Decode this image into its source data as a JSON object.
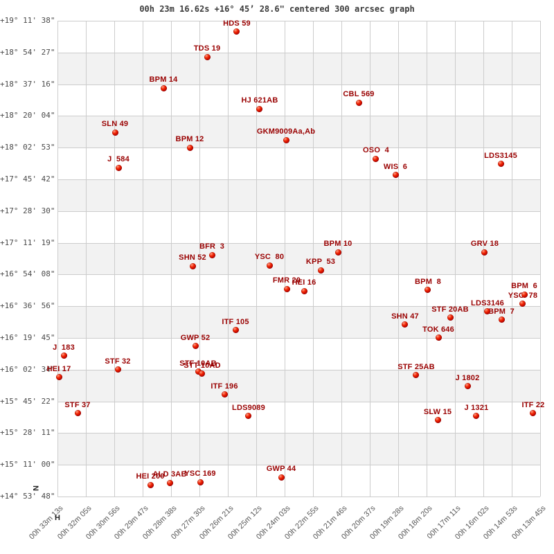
{
  "chart_data": {
    "type": "scatter",
    "title": "00h 23m 16.62s +16° 45’ 28.6\" centered 300 arcsec graph",
    "description": "Double-star identifiers plotted by Right Ascension (x, decreasing rightward) and Declination (y)",
    "grid": true,
    "legend": false,
    "x_axis": {
      "quantity": "right ascension",
      "unit_marker": "H",
      "direction": "decreasing-rightward",
      "range_seconds_of_ra": [
        1993,
        825
      ],
      "tick_labels": [
        "00h 33m 13s",
        "00h 32m 05s",
        "00h 30m 56s",
        "00h 29m 47s",
        "00h 28m 38s",
        "00h 27m 30s",
        "00h 26m 21s",
        "00h 25m 12s",
        "00h 24m 03s",
        "00h 22m 55s",
        "00h 21m 46s",
        "00h 20m 37s",
        "00h 19m 28s",
        "00h 18m 20s",
        "00h 17m 11s",
        "00h 16m 02s",
        "00h 14m 53s",
        "00h 13m 45s"
      ]
    },
    "y_axis": {
      "quantity": "declination",
      "unit_marker": "N",
      "range_degrees": [
        19.19389,
        14.89667
      ],
      "tick_labels": [
        "+19° 11' 38\"",
        "+18° 54' 27\"",
        "+18° 37' 16\"",
        "+18° 20' 04\"",
        "+18° 02' 53\"",
        "+17° 45' 42\"",
        "+17° 28' 30\"",
        "+17° 11' 19\"",
        "+16° 54' 08\"",
        "+16° 36' 56\"",
        "+16° 19' 45\"",
        "+16° 02' 34\"",
        "+15° 45' 22\"",
        "+15° 28' 11\"",
        "+15° 11' 00\"",
        "+14° 53' 48\""
      ]
    },
    "styles": {
      "marker_color": "#cc0000",
      "label_color": "#990000",
      "grid_color": "#cccccc",
      "band_color": "#f2f2f2",
      "axis_text_color": "#4a4a4a",
      "title_color": "#3a3a3a"
    },
    "points": [
      {
        "label": "HDS 59",
        "ra_s": 1559.0,
        "dec_deg": 19.09381
      },
      {
        "label": "TDS 19",
        "ra_s": 1631.0,
        "dec_deg": 18.86862
      },
      {
        "label": "BPM 14",
        "ra_s": 1736.6,
        "dec_deg": 18.58715
      },
      {
        "label": "HJ 621AB",
        "ra_s": 1503.7,
        "dec_deg": 18.39949
      },
      {
        "label": "CBL 569",
        "ra_s": 1264.0,
        "dec_deg": 18.45578
      },
      {
        "label": "SLN 49",
        "ra_s": 1853.9,
        "dec_deg": 18.18682
      },
      {
        "label": "GKM9009Aa,Ab",
        "ra_s": 1440.0,
        "dec_deg": 18.118
      },
      {
        "label": "BPM 12",
        "ra_s": 1672.9,
        "dec_deg": 18.04919
      },
      {
        "label": "J  584",
        "ra_s": 1845.5,
        "dec_deg": 17.86781
      },
      {
        "label": "OSO  4",
        "ra_s": 1222.2,
        "dec_deg": 17.94913
      },
      {
        "label": "WIS  6",
        "ra_s": 1175.2,
        "dec_deg": 17.79902
      },
      {
        "label": "LDS3145",
        "ra_s": 920.5,
        "dec_deg": 17.89911
      },
      {
        "label": "BFR  3",
        "ra_s": 1619.3,
        "dec_deg": 17.07967
      },
      {
        "label": "SHN 52",
        "ra_s": 1666.2,
        "dec_deg": 16.97958
      },
      {
        "label": "YSC  80",
        "ra_s": 1480.2,
        "dec_deg": 16.98584
      },
      {
        "label": "BPM 10",
        "ra_s": 1314.3,
        "dec_deg": 17.10469
      },
      {
        "label": "KPP  53",
        "ra_s": 1356.2,
        "dec_deg": 16.94205
      },
      {
        "label": "GRV 18",
        "ra_s": 959.1,
        "dec_deg": 17.10469
      },
      {
        "label": "FMR 20",
        "ra_s": 1438.3,
        "dec_deg": 16.77318
      },
      {
        "label": "HEI 16",
        "ra_s": 1396.4,
        "dec_deg": 16.75442
      },
      {
        "label": "BPM  8",
        "ra_s": 1096.5,
        "dec_deg": 16.76068
      },
      {
        "label": "BPM  6",
        "ra_s": 863.5,
        "dec_deg": 16.72314
      },
      {
        "label": "YSC  78",
        "ra_s": 866.9,
        "dec_deg": 16.63558
      },
      {
        "label": "LDS3146",
        "ra_s": 952.4,
        "dec_deg": 16.56678
      },
      {
        "label": "BPM  7",
        "ra_s": 918.8,
        "dec_deg": 16.49171
      },
      {
        "label": "STF 20AB",
        "ra_s": 1042.8,
        "dec_deg": 16.51048
      },
      {
        "label": "SHN 47",
        "ra_s": 1151.8,
        "dec_deg": 16.44793
      },
      {
        "label": "TOK 646",
        "ra_s": 1071.3,
        "dec_deg": 16.32908
      },
      {
        "label": "ITF 105",
        "ra_s": 1562.3,
        "dec_deg": 16.39789
      },
      {
        "label": "GWP 52",
        "ra_s": 1659.5,
        "dec_deg": 16.25402
      },
      {
        "label": "J  183",
        "ra_s": 1977.9,
        "dec_deg": 16.16646
      },
      {
        "label": "HEI 17",
        "ra_s": 1989.6,
        "dec_deg": 15.97255
      },
      {
        "label": "STF 32",
        "ra_s": 1847.2,
        "dec_deg": 16.04136
      },
      {
        "label": "STF 10AB",
        "ra_s": 1652.8,
        "dec_deg": 16.02259
      },
      {
        "label": "STT 10AD",
        "ra_s": 1642.8,
        "dec_deg": 16.00383
      },
      {
        "label": "ITF 196",
        "ra_s": 1589.1,
        "dec_deg": 15.81618
      },
      {
        "label": "STF 37",
        "ra_s": 1944.4,
        "dec_deg": 15.64729
      },
      {
        "label": "LDS9089",
        "ra_s": 1530.5,
        "dec_deg": 15.62227
      },
      {
        "label": "STF 25AB",
        "ra_s": 1125.0,
        "dec_deg": 15.99132
      },
      {
        "label": "J 1802",
        "ra_s": 1000.9,
        "dec_deg": 15.89124
      },
      {
        "label": "SLW 15",
        "ra_s": 1073.0,
        "dec_deg": 15.58474
      },
      {
        "label": "J 1321",
        "ra_s": 979.2,
        "dec_deg": 15.62227
      },
      {
        "label": "ITF 22",
        "ra_s": 841.8,
        "dec_deg": 15.64729
      },
      {
        "label": "HEI 200",
        "ra_s": 1768.4,
        "dec_deg": 15.00295
      },
      {
        "label": "ALD 3AB",
        "ra_s": 1721.4,
        "dec_deg": 15.02171
      },
      {
        "label": "YSC 169",
        "ra_s": 1647.7,
        "dec_deg": 15.02797
      },
      {
        "label": "GWP 44",
        "ra_s": 1451.7,
        "dec_deg": 15.07175
      }
    ]
  }
}
